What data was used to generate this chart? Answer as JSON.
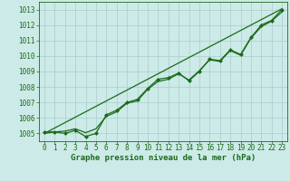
{
  "title": "Graphe pression niveau de la mer (hPa)",
  "background_color": "#cceae7",
  "plot_bg_color": "#cceae7",
  "grid_color": "#aacccc",
  "line_color": "#1a6b1a",
  "marker_color": "#1a6b1a",
  "x_ticks": [
    0,
    1,
    2,
    3,
    4,
    5,
    6,
    7,
    8,
    9,
    10,
    11,
    12,
    13,
    14,
    15,
    16,
    17,
    18,
    19,
    20,
    21,
    22,
    23
  ],
  "ylim": [
    1004.5,
    1013.5
  ],
  "yticks": [
    1005,
    1006,
    1007,
    1008,
    1009,
    1010,
    1011,
    1012,
    1013
  ],
  "series_data": [
    1005.1,
    1005.1,
    1005.0,
    1005.2,
    1004.8,
    1005.0,
    1006.2,
    1006.5,
    1007.0,
    1007.2,
    1007.9,
    1008.5,
    1008.6,
    1008.9,
    1008.4,
    1009.0,
    1009.8,
    1009.7,
    1010.4,
    1010.1,
    1011.2,
    1012.0,
    1012.3,
    1013.0
  ],
  "series_smooth": [
    1005.0,
    1005.1,
    1005.15,
    1005.3,
    1005.05,
    1005.3,
    1006.1,
    1006.4,
    1006.95,
    1007.1,
    1007.85,
    1008.35,
    1008.5,
    1008.85,
    1008.45,
    1009.05,
    1009.75,
    1009.65,
    1010.35,
    1010.05,
    1011.15,
    1011.9,
    1012.25,
    1012.85
  ],
  "series_trend": [
    1005.0,
    1005.35,
    1005.7,
    1006.05,
    1006.4,
    1006.75,
    1007.1,
    1007.45,
    1007.8,
    1008.15,
    1008.5,
    1008.85,
    1009.2,
    1009.55,
    1009.9,
    1010.25,
    1010.6,
    1010.95,
    1011.3,
    1011.65,
    1012.0,
    1012.35,
    1012.7,
    1013.05
  ],
  "ylabel_fontsize": 5.5,
  "xlabel_fontsize": 6.5,
  "tick_fontsize": 5.5
}
